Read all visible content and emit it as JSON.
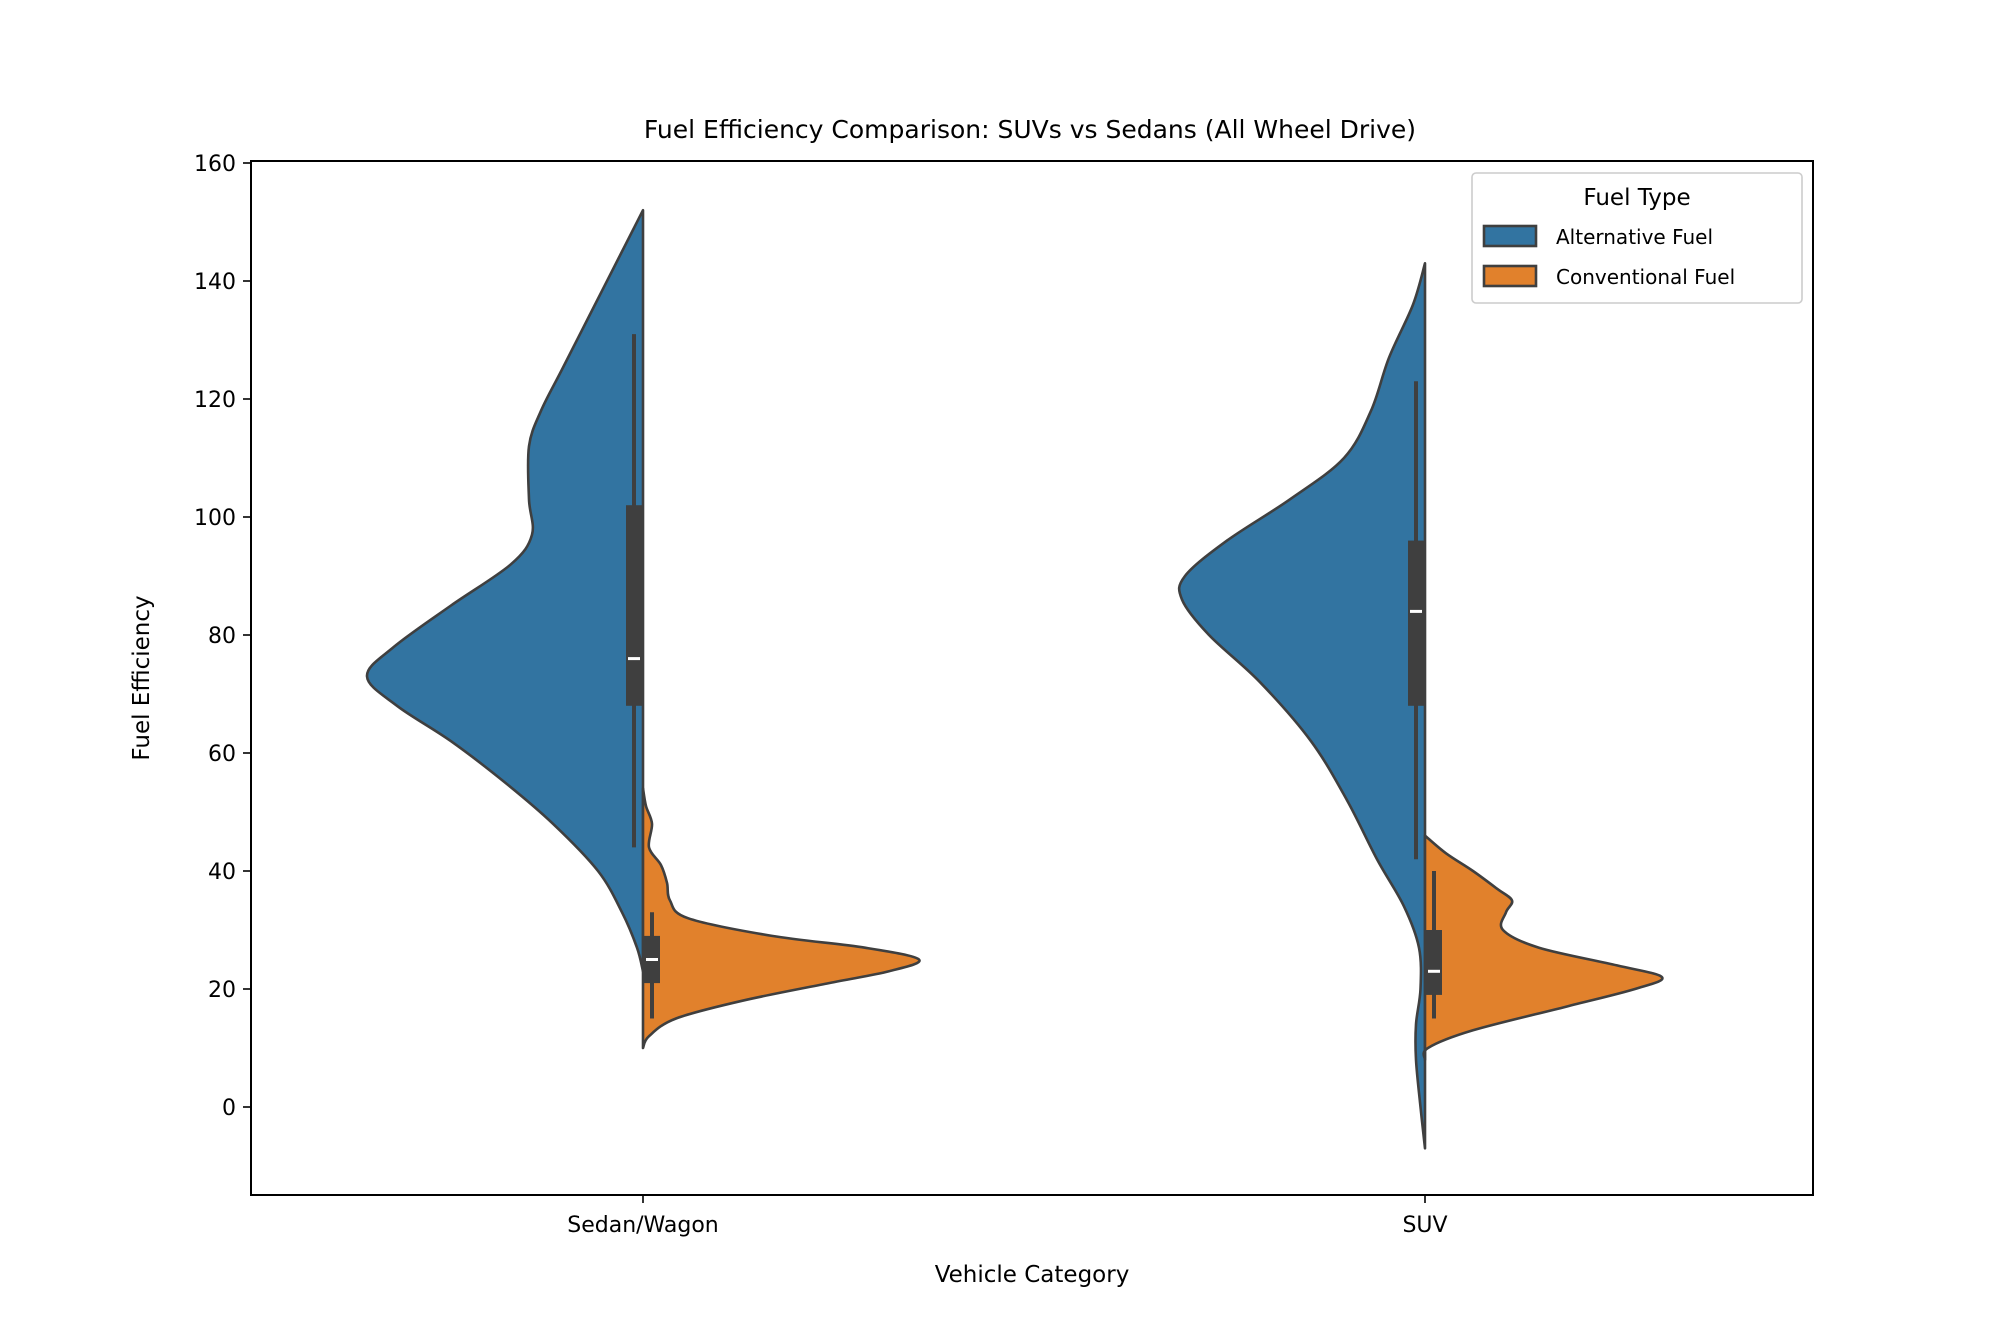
{
  "chart_data": {
    "type": "violin",
    "split": true,
    "title": "Fuel Efficiency Comparison: SUVs vs Sedans (All Wheel Drive)",
    "xlabel": "Vehicle Category",
    "ylabel": "Fuel Efficiency",
    "ylim": [
      -15,
      160
    ],
    "yticks": [
      0,
      20,
      40,
      60,
      80,
      100,
      120,
      140,
      160
    ],
    "categories": [
      "Sedan/Wagon",
      "SUV"
    ],
    "legend": {
      "title": "Fuel Type",
      "position": "top-right"
    },
    "grid": false,
    "series": [
      {
        "name": "Alternative Fuel",
        "color": "#3274a1",
        "side": "left",
        "violins": [
          {
            "category": "Sedan/Wagon",
            "range": [
              23,
              152
            ],
            "density_profile": [
              [
                23,
                0.0
              ],
              [
                27,
                0.02
              ],
              [
                33,
                0.07
              ],
              [
                40,
                0.15
              ],
              [
                48,
                0.3
              ],
              [
                55,
                0.46
              ],
              [
                62,
                0.64
              ],
              [
                68,
                0.82
              ],
              [
                73,
                0.92
              ],
              [
                78,
                0.83
              ],
              [
                85,
                0.64
              ],
              [
                92,
                0.44
              ],
              [
                97,
                0.37
              ],
              [
                103,
                0.38
              ],
              [
                112,
                0.38
              ],
              [
                118,
                0.34
              ],
              [
                125,
                0.27
              ],
              [
                135,
                0.17
              ],
              [
                145,
                0.07
              ],
              [
                152,
                0.0
              ]
            ],
            "median": 76,
            "q1": 68,
            "q3": 102,
            "whisker_low": 44,
            "whisker_high": 131
          },
          {
            "category": "SUV",
            "range": [
              -7,
              143
            ],
            "density_profile": [
              [
                -7,
                0.0
              ],
              [
                0,
                0.015
              ],
              [
                8,
                0.03
              ],
              [
                14,
                0.03
              ],
              [
                20,
                0.015
              ],
              [
                27,
                0.02
              ],
              [
                34,
                0.07
              ],
              [
                42,
                0.16
              ],
              [
                52,
                0.26
              ],
              [
                62,
                0.38
              ],
              [
                72,
                0.55
              ],
              [
                80,
                0.72
              ],
              [
                86,
                0.81
              ],
              [
                90,
                0.8
              ],
              [
                96,
                0.66
              ],
              [
                103,
                0.45
              ],
              [
                110,
                0.27
              ],
              [
                118,
                0.18
              ],
              [
                127,
                0.12
              ],
              [
                136,
                0.04
              ],
              [
                143,
                0.0
              ]
            ],
            "median": 84,
            "q1": 68,
            "q3": 96,
            "whisker_low": 42,
            "whisker_high": 123
          }
        ]
      },
      {
        "name": "Conventional Fuel",
        "color": "#e1812c",
        "side": "right",
        "violins": [
          {
            "category": "Sedan/Wagon",
            "range": [
              10,
              54
            ],
            "density_profile": [
              [
                10,
                0.0
              ],
              [
                12,
                0.02
              ],
              [
                15,
                0.11
              ],
              [
                18,
                0.33
              ],
              [
                21,
                0.62
              ],
              [
                23,
                0.82
              ],
              [
                25,
                0.92
              ],
              [
                27,
                0.74
              ],
              [
                29,
                0.43
              ],
              [
                32,
                0.15
              ],
              [
                35,
                0.09
              ],
              [
                38,
                0.08
              ],
              [
                41,
                0.06
              ],
              [
                44,
                0.02
              ],
              [
                48,
                0.03
              ],
              [
                51,
                0.01
              ],
              [
                54,
                0.0
              ]
            ],
            "median": 25,
            "q1": 21,
            "q3": 29,
            "whisker_low": 15,
            "whisker_high": 33
          },
          {
            "category": "SUV",
            "range": [
              8,
              46
            ],
            "density_profile": [
              [
                8,
                0.0
              ],
              [
                10,
                0.01
              ],
              [
                13,
                0.16
              ],
              [
                17,
                0.47
              ],
              [
                20,
                0.7
              ],
              [
                22,
                0.79
              ],
              [
                24,
                0.64
              ],
              [
                27,
                0.38
              ],
              [
                30,
                0.26
              ],
              [
                33,
                0.27
              ],
              [
                35,
                0.29
              ],
              [
                37,
                0.24
              ],
              [
                40,
                0.16
              ],
              [
                43,
                0.07
              ],
              [
                46,
                0.0
              ]
            ],
            "median": 23,
            "q1": 19,
            "q3": 30,
            "whisker_low": 15,
            "whisker_high": 40
          }
        ]
      }
    ]
  }
}
